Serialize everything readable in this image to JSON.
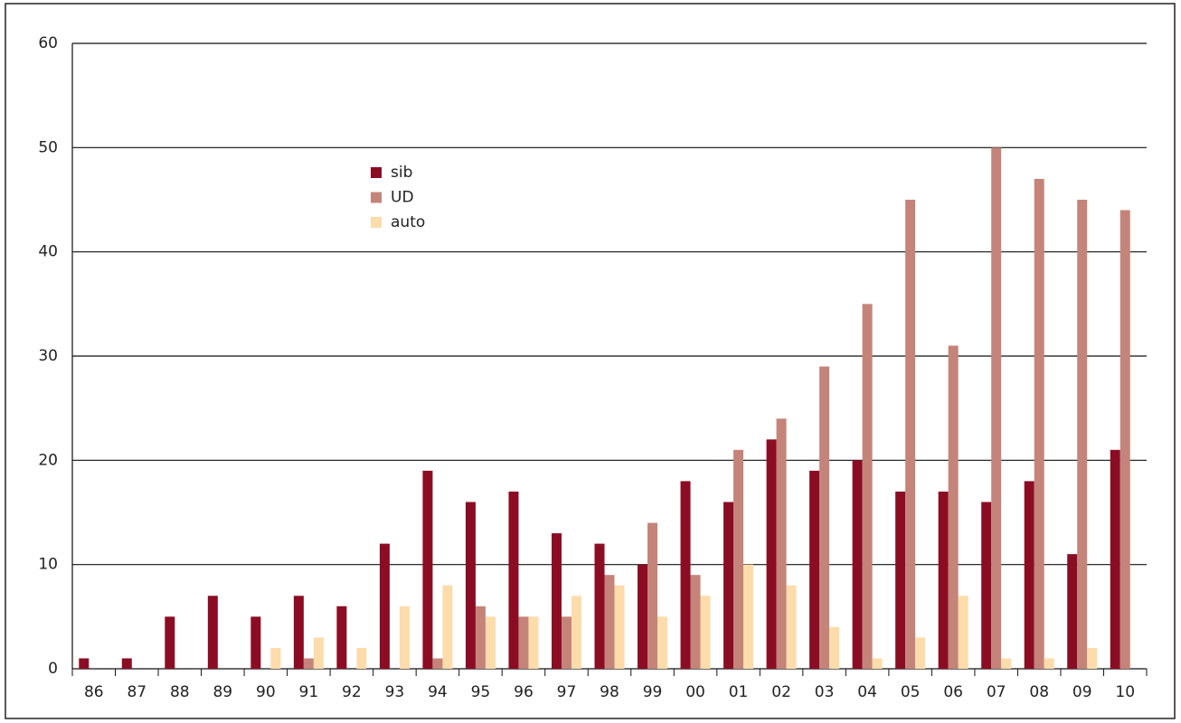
{
  "chart_data": {
    "type": "bar",
    "categories": [
      "86",
      "87",
      "88",
      "89",
      "90",
      "91",
      "92",
      "93",
      "94",
      "95",
      "96",
      "97",
      "98",
      "99",
      "00",
      "01",
      "02",
      "03",
      "04",
      "05",
      "06",
      "07",
      "08",
      "09",
      "10"
    ],
    "series": [
      {
        "name": "sib",
        "color": "#8b0d24",
        "values": [
          1,
          1,
          5,
          7,
          5,
          7,
          6,
          12,
          19,
          16,
          17,
          13,
          12,
          10,
          18,
          16,
          22,
          19,
          20,
          17,
          17,
          16,
          18,
          11,
          21
        ]
      },
      {
        "name": "UD",
        "color": "#c4847a",
        "values": [
          0,
          0,
          0,
          0,
          0,
          1,
          0,
          0,
          1,
          6,
          5,
          5,
          9,
          14,
          9,
          21,
          24,
          29,
          35,
          45,
          31,
          50,
          47,
          45,
          44
        ]
      },
      {
        "name": "auto",
        "color": "#fcdcaa",
        "values": [
          0,
          0,
          0,
          0,
          2,
          3,
          2,
          6,
          8,
          5,
          5,
          7,
          8,
          5,
          7,
          10,
          8,
          4,
          1,
          3,
          7,
          1,
          1,
          2,
          0
        ]
      }
    ],
    "ylim": [
      0,
      60
    ],
    "yticks": [
      0,
      10,
      20,
      30,
      40,
      50,
      60
    ],
    "grid": true
  }
}
